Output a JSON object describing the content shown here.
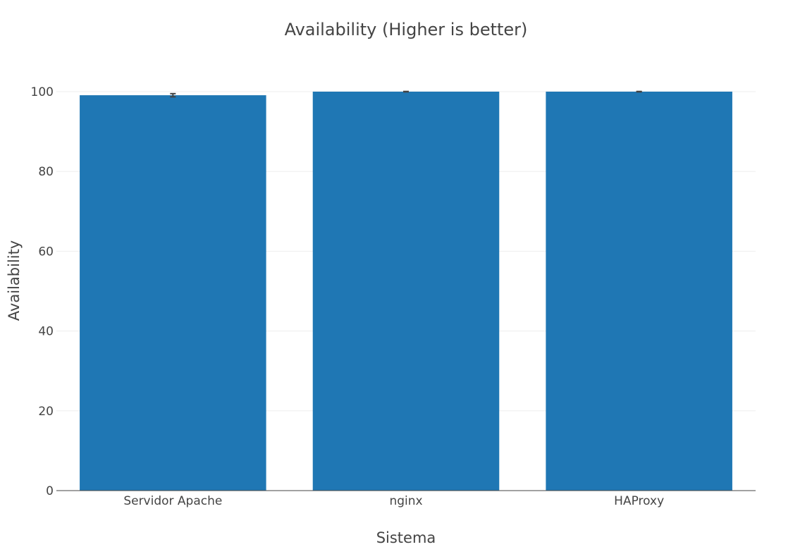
{
  "chart_data": {
    "type": "bar",
    "title": "Availability (Higher is better)",
    "xlabel": "Sistema",
    "ylabel": "Availability",
    "categories": [
      "Servidor Apache",
      "nginx",
      "HAProxy"
    ],
    "values": [
      99.1,
      100,
      100
    ],
    "error": [
      0.4,
      0.05,
      0.05
    ],
    "ylim": [
      0,
      100
    ],
    "yticks": [
      0,
      20,
      40,
      60,
      80,
      100
    ],
    "grid": true,
    "legend": "none",
    "colors": {
      "bar": "#1f77b4",
      "grid": "#eeeeee",
      "axis_line": "#444444",
      "error_bar": "#444444",
      "text": "#444444"
    }
  }
}
